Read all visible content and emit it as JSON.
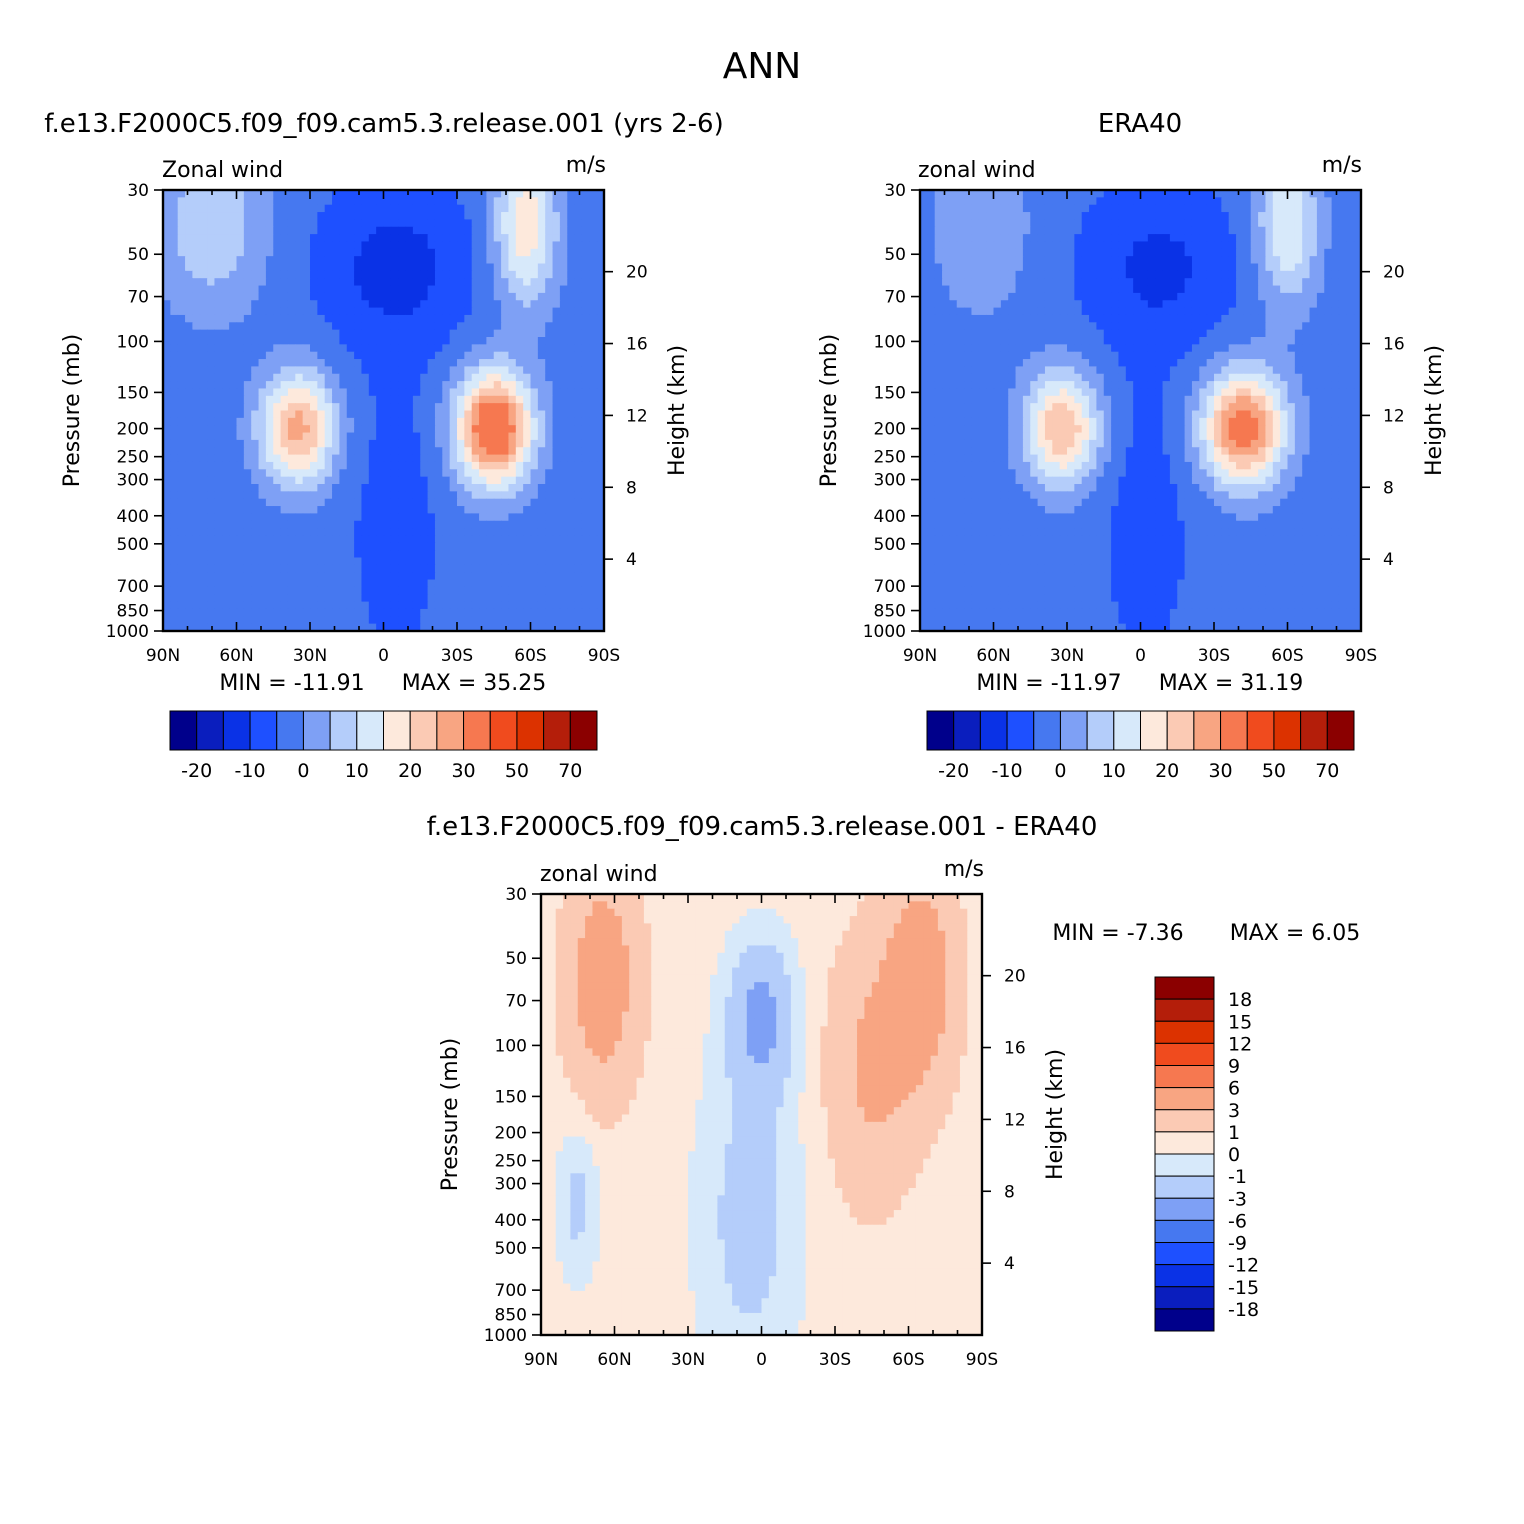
{
  "figure": {
    "main_title": "ANN",
    "bottom_title": "f.e13.F2000C5.f09_f09.cam5.3.release.001 - ERA40"
  },
  "palettes": {
    "abs": [
      "#00008b",
      "#0a1ebe",
      "#0a32e6",
      "#1e50ff",
      "#4678f0",
      "#7ea0f5",
      "#b4cdfa",
      "#d7e9fa",
      "#fde9dc",
      "#fbcab4",
      "#f8a582",
      "#f67850",
      "#f04b1e",
      "#dc3200",
      "#b41e0a",
      "#8b0000"
    ],
    "diff": [
      "#00008b",
      "#0a1ebe",
      "#0a32e6",
      "#1e50ff",
      "#4678f0",
      "#7ea0f5",
      "#b4cdfa",
      "#d7e9fa",
      "#fde9dc",
      "#fbcab4",
      "#f8a582",
      "#f67850",
      "#f04b1e",
      "#dc3200",
      "#b41e0a",
      "#8b0000"
    ]
  },
  "chart_data": [
    {
      "type": "heatmap",
      "id": "model",
      "title": "f.e13.F2000C5.f09_f09.cam5.3.release.001 (yrs 2-6)",
      "left_label": "Zonal wind",
      "right_label": "m/s",
      "ylabel": "Pressure (mb)",
      "ylabel_right": "Height (km)",
      "x_ticks": [
        "90N",
        "60N",
        "30N",
        "0",
        "30S",
        "60S",
        "90S"
      ],
      "x_lat": [
        90,
        60,
        30,
        0,
        -30,
        -60,
        -90
      ],
      "y_ticks": [
        30,
        50,
        70,
        100,
        150,
        200,
        250,
        300,
        400,
        500,
        700,
        850,
        1000
      ],
      "y_scale": "log",
      "ylim": [
        30,
        1000
      ],
      "height_ticks_km": [
        4,
        8,
        12,
        16,
        20
      ],
      "min_label": "MIN = -11.91",
      "max_label": "MAX = 35.25",
      "min": -11.91,
      "max": 35.25,
      "levels": [
        -25,
        -20,
        -15,
        -10,
        -5,
        0,
        5,
        10,
        15,
        20,
        25,
        30,
        40,
        50,
        60,
        70,
        80
      ],
      "colorbar_labels": [
        "-20",
        "-10",
        "0",
        "10",
        "20",
        "30",
        "50",
        "70"
      ],
      "features": [
        {
          "kind": "background",
          "value": -3
        },
        {
          "kind": "blob",
          "lat": -5,
          "p": 55,
          "amp": -9,
          "sx": 22,
          "sy": 0.45
        },
        {
          "kind": "blob",
          "lat": -5,
          "p": 400,
          "amp": -4,
          "sx": 14,
          "sy": 0.9
        },
        {
          "kind": "blob",
          "lat": 35,
          "p": 200,
          "amp": 30,
          "sx": 11,
          "sy": 0.32
        },
        {
          "kind": "blob",
          "lat": -45,
          "p": 200,
          "amp": 42,
          "sx": 11,
          "sy": 0.32
        },
        {
          "kind": "blob",
          "lat": -58,
          "p": 40,
          "amp": 22,
          "sx": 9,
          "sy": 0.45
        },
        {
          "kind": "blob",
          "lat": 70,
          "p": 40,
          "amp": 12,
          "sx": 16,
          "sy": 0.5
        }
      ]
    },
    {
      "type": "heatmap",
      "id": "obs",
      "title": "ERA40",
      "left_label": "zonal wind",
      "right_label": "m/s",
      "ylabel": "Pressure (mb)",
      "ylabel_right": "Height (km)",
      "x_ticks": [
        "90N",
        "60N",
        "30N",
        "0",
        "30S",
        "60S",
        "90S"
      ],
      "x_lat": [
        90,
        60,
        30,
        0,
        -30,
        -60,
        -90
      ],
      "y_ticks": [
        30,
        50,
        70,
        100,
        150,
        200,
        250,
        300,
        400,
        500,
        700,
        850,
        1000
      ],
      "y_scale": "log",
      "ylim": [
        30,
        1000
      ],
      "height_ticks_km": [
        4,
        8,
        12,
        16,
        20
      ],
      "min_label": "MIN = -11.97",
      "max_label": "MAX = 31.19",
      "min": -11.97,
      "max": 31.19,
      "levels": [
        -25,
        -20,
        -15,
        -10,
        -5,
        0,
        5,
        10,
        15,
        20,
        25,
        30,
        40,
        50,
        60,
        70,
        80
      ],
      "colorbar_labels": [
        "-20",
        "-10",
        "0",
        "10",
        "20",
        "30",
        "50",
        "70"
      ],
      "features": [
        {
          "kind": "background",
          "value": -3
        },
        {
          "kind": "blob",
          "lat": -8,
          "p": 55,
          "amp": -8,
          "sx": 22,
          "sy": 0.45
        },
        {
          "kind": "blob",
          "lat": -2,
          "p": 400,
          "amp": -4,
          "sx": 14,
          "sy": 0.9
        },
        {
          "kind": "blob",
          "lat": 32,
          "p": 200,
          "amp": 28,
          "sx": 11,
          "sy": 0.32
        },
        {
          "kind": "blob",
          "lat": -42,
          "p": 200,
          "amp": 37,
          "sx": 12,
          "sy": 0.32
        },
        {
          "kind": "blob",
          "lat": -60,
          "p": 40,
          "amp": 18,
          "sx": 9,
          "sy": 0.45
        },
        {
          "kind": "blob",
          "lat": 65,
          "p": 40,
          "amp": 8,
          "sx": 14,
          "sy": 0.5
        }
      ]
    },
    {
      "type": "heatmap",
      "id": "diff",
      "title": "",
      "left_label": "zonal wind",
      "right_label": "m/s",
      "ylabel": "Pressure (mb)",
      "ylabel_right": "Height (km)",
      "x_ticks": [
        "90N",
        "60N",
        "30N",
        "0",
        "30S",
        "60S",
        "90S"
      ],
      "x_lat": [
        90,
        60,
        30,
        0,
        -30,
        -60,
        -90
      ],
      "y_ticks": [
        30,
        50,
        70,
        100,
        150,
        200,
        250,
        300,
        400,
        500,
        700,
        850,
        1000
      ],
      "y_scale": "log",
      "ylim": [
        30,
        1000
      ],
      "height_ticks_km": [
        4,
        8,
        12,
        16,
        20
      ],
      "min_label": "MIN = -7.36",
      "max_label": "MAX = 6.05",
      "min": -7.36,
      "max": 6.05,
      "levels": [
        -21,
        -18,
        -15,
        -12,
        -9,
        -6,
        -3,
        -1,
        0,
        1,
        3,
        6,
        9,
        12,
        15,
        18,
        21
      ],
      "colorbar_labels": [
        "18",
        "15",
        "12",
        "9",
        "6",
        "3",
        "1",
        "0",
        "-1",
        "-3",
        "-6",
        "-9",
        "-12",
        "-15",
        "-18"
      ],
      "features": [
        {
          "kind": "background",
          "value": 0.4
        },
        {
          "kind": "blob",
          "lat": 65,
          "p": 60,
          "amp": 4.5,
          "sx": 10,
          "sy": 0.6
        },
        {
          "kind": "blob",
          "lat": -65,
          "p": 60,
          "amp": 4.5,
          "sx": 10,
          "sy": 0.6
        },
        {
          "kind": "blob",
          "lat": -45,
          "p": 120,
          "amp": 3,
          "sx": 12,
          "sy": 0.7
        },
        {
          "kind": "blob",
          "lat": 0,
          "p": 80,
          "amp": -4,
          "sx": 9,
          "sy": 0.4
        },
        {
          "kind": "blob",
          "lat": 5,
          "p": 400,
          "amp": -2,
          "sx": 14,
          "sy": 0.9
        },
        {
          "kind": "blob",
          "lat": 75,
          "p": 350,
          "amp": -1.8,
          "sx": 6,
          "sy": 0.4
        }
      ]
    }
  ]
}
